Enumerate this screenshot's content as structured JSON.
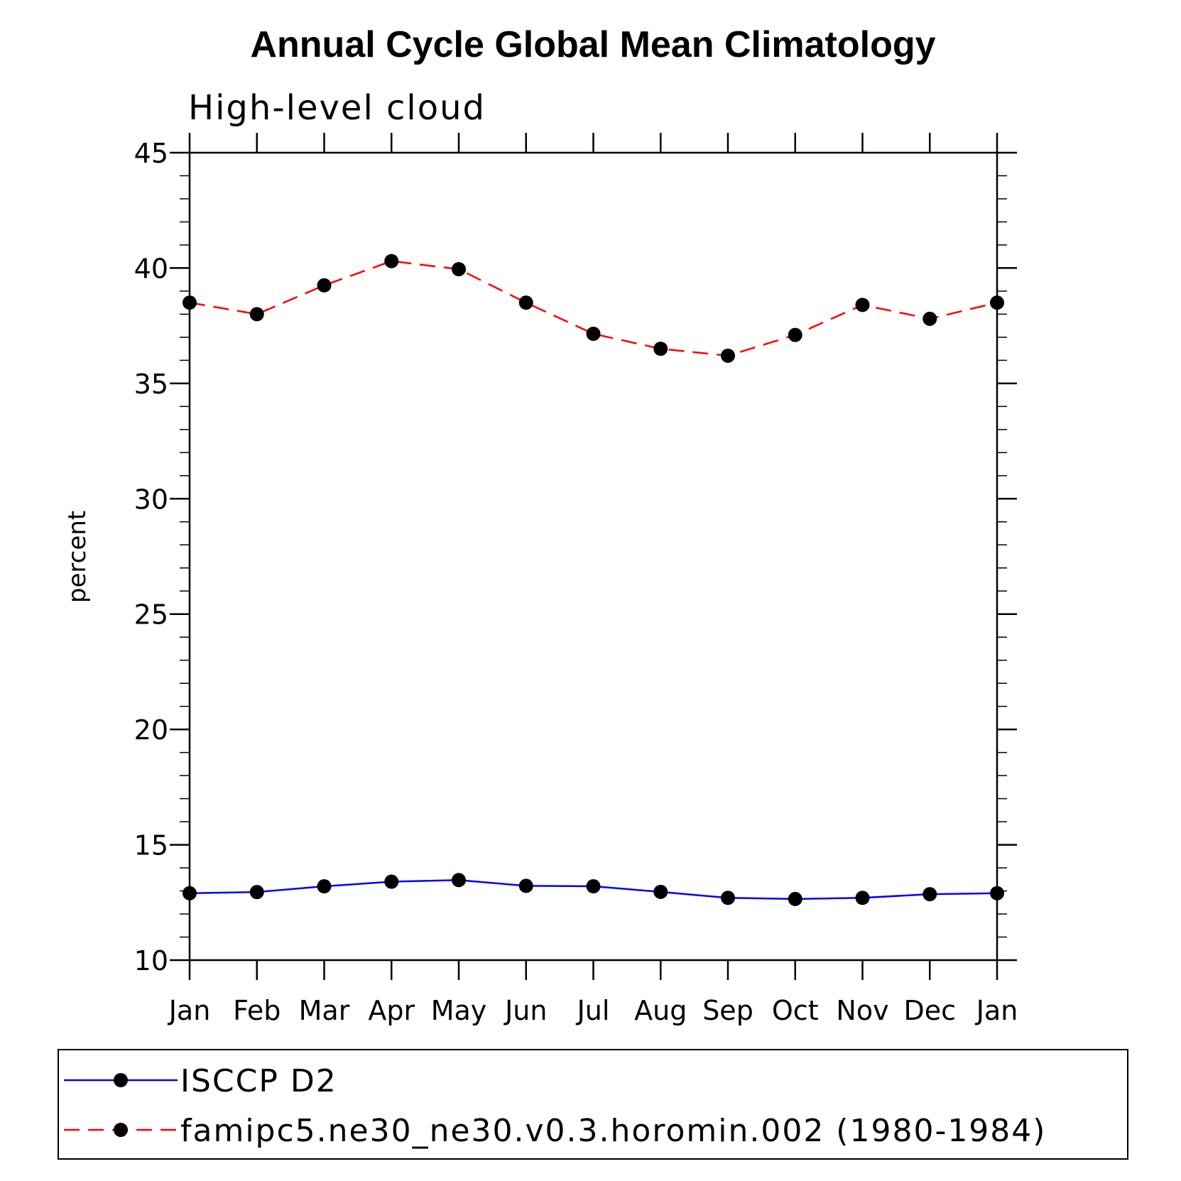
{
  "chart_data": {
    "type": "line",
    "title": "Annual Cycle Global Mean Climatology",
    "subtitle": "High-level cloud",
    "ylabel": "percent",
    "xlabel": "",
    "ylim": [
      10,
      45
    ],
    "yticks": [
      10,
      15,
      20,
      25,
      30,
      35,
      40,
      45
    ],
    "ytick_labels": [
      "10",
      "15",
      "20",
      "25",
      "30",
      "35",
      "40",
      "45"
    ],
    "categories": [
      "Jan",
      "Feb",
      "Mar",
      "Apr",
      "May",
      "Jun",
      "Jul",
      "Aug",
      "Sep",
      "Oct",
      "Nov",
      "Dec",
      "Jan"
    ],
    "grid": false,
    "legend_position": "bottom",
    "series": [
      {
        "name": "ISCCP D2",
        "color": "#0000ff",
        "dash": "solid",
        "values": [
          12.9,
          12.95,
          13.2,
          13.4,
          13.47,
          13.22,
          13.2,
          12.96,
          12.7,
          12.65,
          12.7,
          12.86,
          12.9
        ]
      },
      {
        "name": "famipc5.ne30_ne30.v0.3.horomin.002 (1980-1984)",
        "color": "#ff0000",
        "dash": "dashed",
        "values": [
          38.5,
          38.0,
          39.25,
          40.3,
          39.95,
          38.5,
          37.15,
          36.5,
          36.2,
          37.1,
          38.4,
          37.8,
          38.5
        ]
      }
    ]
  }
}
